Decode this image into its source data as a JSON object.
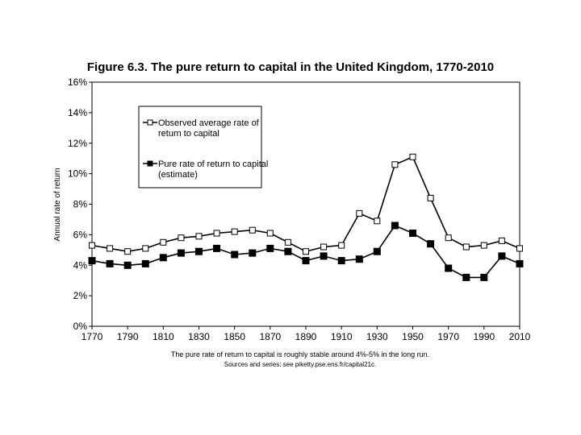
{
  "chart_data": {
    "type": "line",
    "title": "Figure 6.3. The pure return to capital in the United Kingdom, 1770-2010",
    "ylabel": "Annual rate of return",
    "xlabel": "",
    "x": [
      1770,
      1780,
      1790,
      1800,
      1810,
      1820,
      1830,
      1840,
      1850,
      1860,
      1870,
      1880,
      1890,
      1900,
      1910,
      1920,
      1930,
      1940,
      1950,
      1960,
      1970,
      1980,
      1990,
      2000,
      2010
    ],
    "xlim": [
      1770,
      2010
    ],
    "ylim": [
      0,
      16
    ],
    "x_ticks": [
      1770,
      1790,
      1810,
      1830,
      1850,
      1870,
      1890,
      1910,
      1930,
      1950,
      1970,
      1990,
      2010
    ],
    "y_ticks": [
      0,
      2,
      4,
      6,
      8,
      10,
      12,
      14,
      16
    ],
    "y_tick_labels": [
      "0%",
      "2%",
      "4%",
      "6%",
      "8%",
      "10%",
      "12%",
      "14%",
      "16%"
    ],
    "grid": false,
    "legend_position": "top-left",
    "series": [
      {
        "name": "Observed average rate of return to capital",
        "name_lines": [
          "Observed average rate of",
          "return to capital"
        ],
        "marker": "open-square",
        "values": [
          5.3,
          5.1,
          4.9,
          5.1,
          5.5,
          5.8,
          5.9,
          6.1,
          6.2,
          6.3,
          6.1,
          5.5,
          4.9,
          5.2,
          5.3,
          7.4,
          6.9,
          10.6,
          11.1,
          8.4,
          5.8,
          5.2,
          5.3,
          5.6,
          5.1
        ]
      },
      {
        "name": "Pure rate of return to capital (estimate)",
        "name_lines": [
          "Pure rate of return to capital",
          "(estimate)"
        ],
        "marker": "filled-square",
        "values": [
          4.3,
          4.1,
          4.0,
          4.1,
          4.5,
          4.8,
          4.9,
          5.1,
          4.7,
          4.8,
          5.1,
          4.9,
          4.3,
          4.6,
          4.3,
          4.4,
          4.9,
          6.6,
          6.1,
          5.4,
          3.8,
          3.2,
          3.2,
          4.6,
          4.1
        ]
      }
    ],
    "notes": [
      "The pure rate of return to capital is roughly stable around 4%-5% in the long run.",
      "Sources and series: see piketty.pse.ens.fr/capital21c."
    ]
  }
}
